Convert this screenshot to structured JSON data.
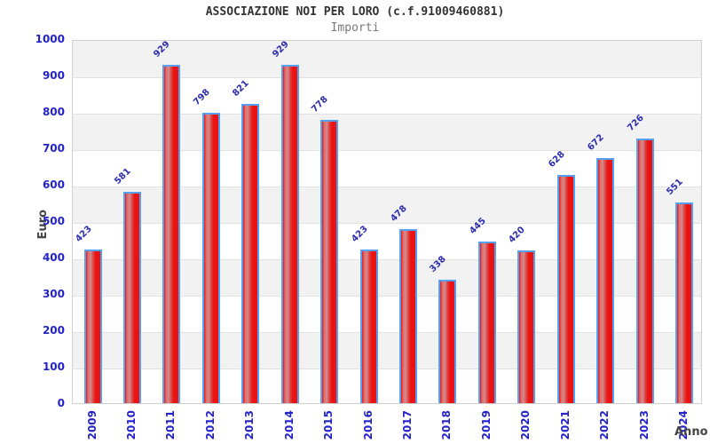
{
  "header": {
    "title": "ASSOCIAZIONE NOI PER LORO (c.f.91009460881)",
    "subtitle": "Importi"
  },
  "chart_data": {
    "type": "bar",
    "title": "ASSOCIAZIONE NOI PER LORO (c.f.91009460881)",
    "subtitle": "Importi",
    "xlabel": "Anno",
    "ylabel": "Euro",
    "categories": [
      "2009",
      "2010",
      "2011",
      "2012",
      "2013",
      "2014",
      "2015",
      "2016",
      "2017",
      "2018",
      "2019",
      "2020",
      "2021",
      "2022",
      "2023",
      "2024"
    ],
    "values": [
      423,
      581,
      929,
      798,
      821,
      929,
      778,
      423,
      478,
      338,
      445,
      420,
      628,
      672,
      726,
      551
    ],
    "ylim": [
      0,
      1000
    ],
    "ytick_step": 100,
    "grid": true,
    "legend": "none",
    "band_pattern": "alternating horizontal bands, gray on odd hundreds",
    "colors": {
      "bar_fill_main": "#ea1212",
      "bar_fill_highlight": "#d08c8c",
      "bar_border": "#55a0f0",
      "tick_label": "#2323c8",
      "value_label": "#2c2cb0",
      "band": "#f2f2f2",
      "gridline": "#e2e2e2",
      "title": "#333333",
      "subtitle": "#777777",
      "axis_label": "#444444"
    }
  }
}
